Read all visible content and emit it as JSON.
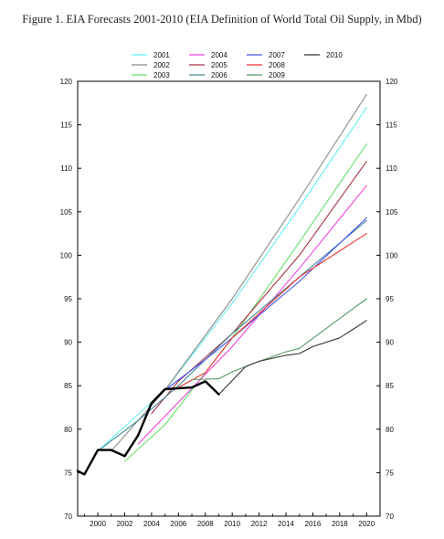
{
  "figure": {
    "title": "Figure 1. EIA Forecasts 2001-2010 (EIA Definition of World Total Oil Supply, in Mbd)"
  },
  "chart_data": {
    "type": "line",
    "title": "Figure 1. EIA Forecasts 2001-2010 (EIA Definition of World Total Oil Supply, in Mbd)",
    "xlabel": "",
    "ylabel": "",
    "xlim": [
      1998.5,
      2021
    ],
    "ylim": [
      70,
      120
    ],
    "x_ticks": [
      2000,
      2002,
      2004,
      2006,
      2008,
      2010,
      2012,
      2014,
      2016,
      2018,
      2020
    ],
    "y_ticks": [
      70,
      75,
      80,
      85,
      90,
      95,
      100,
      105,
      110,
      115,
      120
    ],
    "grid": false,
    "legend_position": "top",
    "series": [
      {
        "name": "2001",
        "color": "#66f0f0",
        "x": [
          2000,
          2005,
          2010,
          2015,
          2020
        ],
        "y": [
          77.5,
          84.5,
          94.5,
          105.5,
          117.0
        ]
      },
      {
        "name": "2002",
        "color": "#8a8a8a",
        "x": [
          2001,
          2005,
          2010,
          2015,
          2020
        ],
        "y": [
          77.5,
          84.5,
          95.0,
          106.5,
          118.5
        ]
      },
      {
        "name": "2003",
        "color": "#66e066",
        "x": [
          2002,
          2005,
          2010,
          2015,
          2020
        ],
        "y": [
          76.3,
          80.5,
          90.5,
          101.5,
          112.8
        ]
      },
      {
        "name": "2004",
        "color": "#ee44dd",
        "x": [
          2003,
          2005,
          2010,
          2015,
          2020
        ],
        "y": [
          78.3,
          81.5,
          89.5,
          98.5,
          108.0
        ]
      },
      {
        "name": "2005",
        "color": "#aa3344",
        "x": [
          2004,
          2006,
          2010,
          2015,
          2020
        ],
        "y": [
          81.8,
          85.5,
          91.0,
          100.0,
          110.8
        ]
      },
      {
        "name": "2006",
        "color": "#448899",
        "x": [
          2000,
          2003,
          2006,
          2010,
          2015,
          2020
        ],
        "y": [
          77.5,
          81.0,
          85.0,
          91.0,
          97.5,
          104.0
        ]
      },
      {
        "name": "2007",
        "color": "#4455ee",
        "x": [
          2005,
          2008,
          2010,
          2015,
          2020
        ],
        "y": [
          84.5,
          88.0,
          90.5,
          97.0,
          104.3
        ]
      },
      {
        "name": "2008",
        "color": "#ee3333",
        "x": [
          2006,
          2008,
          2010,
          2015,
          2019,
          2020
        ],
        "y": [
          84.8,
          86.5,
          90.5,
          97.5,
          101.5,
          102.5
        ]
      },
      {
        "name": "2009",
        "color": "#559966",
        "x": [
          2007,
          2009,
          2010,
          2012,
          2014,
          2015,
          2020
        ],
        "y": [
          85.7,
          85.8,
          86.6,
          87.8,
          88.9,
          89.3,
          95.0
        ]
      },
      {
        "name": "2010",
        "color": "#333333",
        "x": [
          2008,
          2009,
          2010,
          2011,
          2012,
          2014,
          2015,
          2016,
          2018,
          2020
        ],
        "y": [
          85.5,
          84.0,
          85.6,
          87.2,
          87.8,
          88.5,
          88.7,
          89.5,
          90.5,
          92.5
        ]
      },
      {
        "name": "",
        "color": "#000000",
        "x": [
          1998.5,
          1999,
          2000,
          2001,
          2002,
          2003,
          2004,
          2005,
          2006,
          2007,
          2008,
          2009
        ],
        "y": [
          75.2,
          74.8,
          77.6,
          77.6,
          76.9,
          79.3,
          83.0,
          84.6,
          84.7,
          84.8,
          85.5,
          84.0
        ]
      }
    ]
  }
}
